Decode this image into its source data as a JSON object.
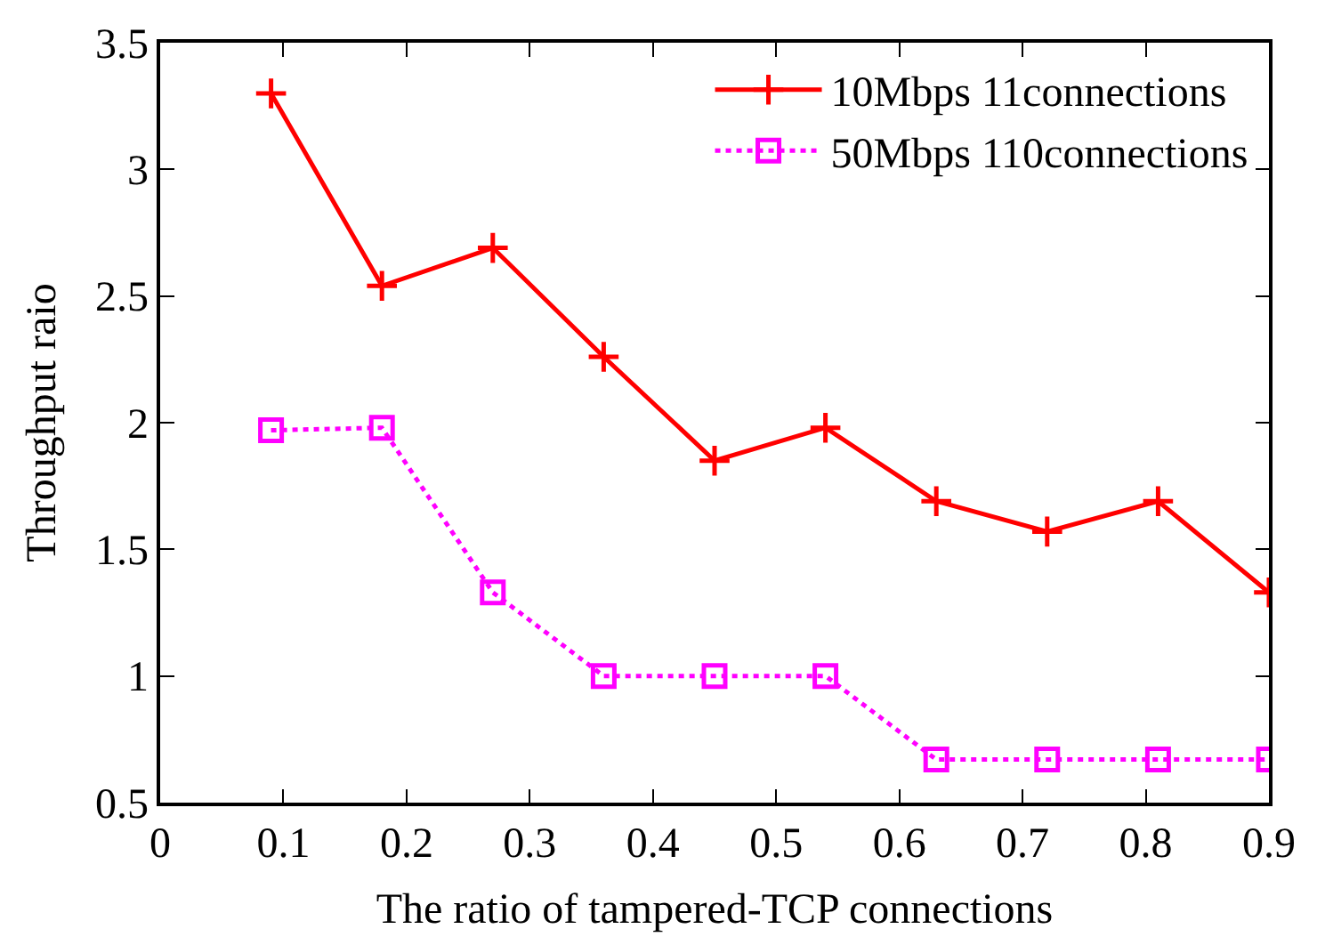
{
  "chart_data": {
    "type": "line",
    "xlabel": "The ratio of tampered-TCP connections",
    "ylabel": "Throughput raio",
    "x": [
      0.09,
      0.18,
      0.27,
      0.36,
      0.45,
      0.54,
      0.63,
      0.72,
      0.81,
      0.9
    ],
    "series": [
      {
        "name": "10Mbps 11connections",
        "color": "#ff0000",
        "marker": "cross",
        "line_style": "solid",
        "values": [
          3.3,
          2.54,
          2.69,
          2.26,
          1.85,
          1.98,
          1.69,
          1.57,
          1.69,
          1.33
        ]
      },
      {
        "name": "50Mbps 110connections",
        "color": "#ff00ff",
        "marker": "square",
        "line_style": "dotted",
        "values": [
          1.97,
          1.98,
          1.33,
          1.0,
          1.0,
          1.0,
          0.67,
          0.67,
          0.67,
          0.67
        ]
      }
    ],
    "xlim": [
      0,
      0.9
    ],
    "xticks": [
      0,
      0.1,
      0.2,
      0.3,
      0.4,
      0.5,
      0.6,
      0.7,
      0.8,
      0.9
    ],
    "ylim": [
      0.5,
      3.5
    ],
    "yticks": [
      0.5,
      1,
      1.5,
      2,
      2.5,
      3,
      3.5
    ],
    "grid": false,
    "legend": "top right"
  }
}
